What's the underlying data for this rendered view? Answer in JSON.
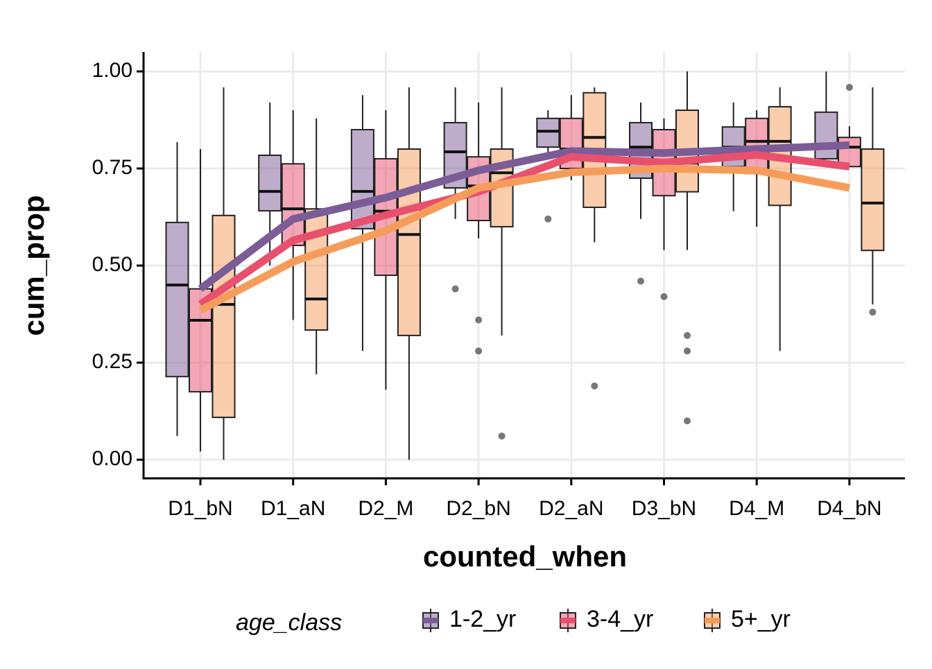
{
  "chart_data": {
    "type": "boxplot",
    "x_label": "counted_when",
    "y_label": "cum_prop",
    "legend_title": "age_class",
    "legend_position": "bottom",
    "grid": true,
    "categories": [
      "D1_bN",
      "D1_aN",
      "D2_M",
      "D2_bN",
      "D2_aN",
      "D3_bN",
      "D4_M",
      "D4_bN"
    ],
    "ylim": [
      -0.048,
      1.05
    ],
    "yticks": [
      {
        "value": 0,
        "label": "0.00"
      },
      {
        "value": 0.25,
        "label": "0.25"
      },
      {
        "value": 0.5,
        "label": "0.50"
      },
      {
        "value": 0.75,
        "label": "0.75"
      },
      {
        "value": 1,
        "label": "1.00"
      }
    ],
    "series": [
      {
        "name": "1-2_yr",
        "color": "#7b5c96",
        "boxes": [
          {
            "min": 0.061,
            "q1": 0.214,
            "median": 0.45,
            "q3": 0.611,
            "max": 0.818,
            "outliers": []
          },
          {
            "min": 0.5,
            "q1": 0.641,
            "median": 0.691,
            "q3": 0.784,
            "max": 0.92,
            "outliers": []
          },
          {
            "min": 0.28,
            "q1": 0.595,
            "median": 0.691,
            "q3": 0.85,
            "max": 0.939,
            "outliers": []
          },
          {
            "min": 0.62,
            "q1": 0.7,
            "median": 0.793,
            "q3": 0.868,
            "max": 0.959,
            "outliers": [
              0.44
            ]
          },
          {
            "min": 0.784,
            "q1": 0.805,
            "median": 0.846,
            "q3": 0.879,
            "max": 0.9,
            "outliers": [
              0.62
            ]
          },
          {
            "min": 0.62,
            "q1": 0.725,
            "median": 0.805,
            "q3": 0.868,
            "max": 0.92,
            "outliers": [
              0.46
            ]
          },
          {
            "min": 0.64,
            "q1": 0.755,
            "median": 0.805,
            "q3": 0.857,
            "max": 0.92,
            "outliers": []
          },
          {
            "min": 0.775,
            "q1": 0.775,
            "median": 0.81,
            "q3": 0.895,
            "max": 1.0,
            "outliers": []
          }
        ],
        "means": [
          0.44,
          0.62,
          0.675,
          0.745,
          0.795,
          0.79,
          0.8,
          0.81
        ]
      },
      {
        "name": "3-4_yr",
        "color": "#e8506e",
        "boxes": [
          {
            "min": 0.021,
            "q1": 0.175,
            "median": 0.359,
            "q3": 0.44,
            "max": 0.8,
            "outliers": []
          },
          {
            "min": 0.36,
            "q1": 0.552,
            "median": 0.646,
            "q3": 0.762,
            "max": 0.9,
            "outliers": []
          },
          {
            "min": 0.18,
            "q1": 0.475,
            "median": 0.64,
            "q3": 0.775,
            "max": 0.9,
            "outliers": []
          },
          {
            "min": 0.57,
            "q1": 0.616,
            "median": 0.705,
            "q3": 0.78,
            "max": 0.92,
            "outliers": [
              0.36,
              0.28
            ]
          },
          {
            "min": 0.72,
            "q1": 0.75,
            "median": 0.8,
            "q3": 0.879,
            "max": 0.939,
            "outliers": []
          },
          {
            "min": 0.54,
            "q1": 0.68,
            "median": 0.755,
            "q3": 0.85,
            "max": 0.879,
            "outliers": [
              0.42
            ]
          },
          {
            "min": 0.6,
            "q1": 0.737,
            "median": 0.82,
            "q3": 0.879,
            "max": 0.9,
            "outliers": []
          },
          {
            "min": 0.755,
            "q1": 0.755,
            "median": 0.805,
            "q3": 0.83,
            "max": 0.859,
            "outliers": [
              0.959
            ]
          }
        ],
        "means": [
          0.4,
          0.565,
          0.63,
          0.69,
          0.78,
          0.765,
          0.785,
          0.755
        ]
      },
      {
        "name": "5+_yr",
        "color": "#f69c5a",
        "boxes": [
          {
            "min": 0,
            "q1": 0.109,
            "median": 0.4,
            "q3": 0.629,
            "max": 0.959,
            "outliers": []
          },
          {
            "min": 0.22,
            "q1": 0.334,
            "median": 0.414,
            "q3": 0.646,
            "max": 0.879,
            "outliers": []
          },
          {
            "min": 0,
            "q1": 0.32,
            "median": 0.58,
            "q3": 0.8,
            "max": 0.959,
            "outliers": []
          },
          {
            "min": 0.32,
            "q1": 0.6,
            "median": 0.739,
            "q3": 0.8,
            "max": 0.959,
            "outliers": [
              0.061
            ]
          },
          {
            "min": 0.56,
            "q1": 0.65,
            "median": 0.83,
            "q3": 0.945,
            "max": 0.959,
            "outliers": [
              0.19
            ]
          },
          {
            "min": 0.54,
            "q1": 0.69,
            "median": 0.764,
            "q3": 0.9,
            "max": 1.0,
            "outliers": [
              0.32,
              0.28,
              0.1
            ]
          },
          {
            "min": 0.28,
            "q1": 0.655,
            "median": 0.82,
            "q3": 0.909,
            "max": 0.959,
            "outliers": []
          },
          {
            "min": 0.4,
            "q1": 0.539,
            "median": 0.661,
            "q3": 0.8,
            "max": 0.959,
            "outliers": [
              0.38
            ]
          }
        ],
        "means": [
          0.385,
          0.51,
          0.59,
          0.7,
          0.74,
          0.75,
          0.745,
          0.7
        ]
      }
    ]
  }
}
